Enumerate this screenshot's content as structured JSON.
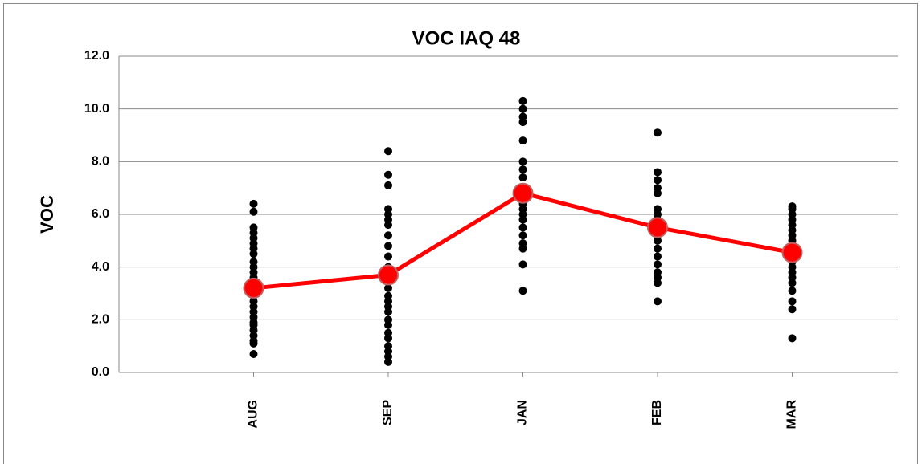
{
  "chart_data": {
    "type": "strip",
    "title": "VOC IAQ 48",
    "y_label": "VOC",
    "categories": [
      "AUG",
      "SEP",
      "JAN",
      "FEB",
      "MAR"
    ],
    "series": [
      {
        "style": "dots",
        "color": "#000000",
        "values": [
          [
            6.4,
            6.1,
            5.5,
            5.3,
            5.1,
            4.9,
            4.7,
            4.5,
            4.2,
            4.0,
            3.8,
            3.6,
            3.4,
            3.2,
            3.0,
            2.9,
            2.7,
            2.5,
            2.3,
            2.1,
            1.9,
            1.8,
            1.6,
            1.4,
            1.2,
            1.1,
            0.7
          ],
          [
            8.4,
            7.5,
            7.1,
            6.2,
            6.0,
            5.8,
            5.6,
            5.2,
            4.8,
            4.4,
            4.0,
            3.8,
            3.7,
            3.5,
            3.2,
            2.9,
            2.7,
            2.5,
            2.3,
            2.0,
            1.8,
            1.5,
            1.3,
            1.0,
            0.8,
            0.6,
            0.4
          ],
          [
            10.3,
            10.0,
            9.7,
            9.5,
            8.8,
            8.0,
            7.7,
            7.4,
            7.0,
            6.8,
            6.6,
            6.4,
            6.2,
            6.0,
            5.8,
            5.5,
            5.2,
            4.9,
            4.7,
            4.1,
            3.1
          ],
          [
            9.1,
            7.6,
            7.3,
            7.0,
            6.8,
            6.2,
            6.0,
            5.8,
            5.6,
            5.4,
            5.2,
            5.0,
            4.7,
            4.4,
            4.1,
            3.8,
            3.6,
            3.4,
            2.7
          ],
          [
            6.3,
            6.2,
            6.0,
            5.8,
            5.6,
            5.4,
            5.2,
            5.0,
            4.8,
            4.6,
            4.4,
            4.2,
            4.0,
            3.8,
            3.6,
            3.4,
            3.1,
            2.7,
            2.4,
            1.3
          ]
        ]
      },
      {
        "style": "line",
        "color": "#ff0000",
        "values": [
          3.2,
          3.7,
          6.8,
          5.5,
          4.55
        ]
      }
    ],
    "ylim": [
      0,
      12
    ],
    "yticks": [
      {
        "value": 0,
        "label": "0.0"
      },
      {
        "value": 2,
        "label": "2.0"
      },
      {
        "value": 4,
        "label": "4.0"
      },
      {
        "value": 6,
        "label": "6.0"
      },
      {
        "value": 8,
        "label": "8.0"
      },
      {
        "value": 10,
        "label": "10.0"
      },
      {
        "value": 12,
        "label": "12.0"
      }
    ],
    "grid": true
  }
}
